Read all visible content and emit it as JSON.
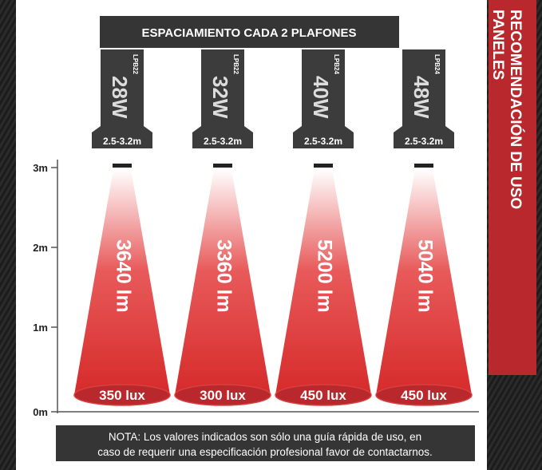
{
  "header": {
    "title": "ESPACIAMIENTO CADA 2 PLAFONES"
  },
  "sidebar": {
    "line1": "RECOMENDACIÓN DE USO",
    "line2": "PANELES"
  },
  "heights": [
    "3m",
    "2m",
    "1m",
    "0m"
  ],
  "lamps": [
    {
      "model": "LPB22",
      "watts": "28W",
      "range": "2.5-3.2m",
      "lumens": "3640 lm",
      "lux": "350 lux"
    },
    {
      "model": "LPB22",
      "watts": "32W",
      "range": "2.5-3.2m",
      "lumens": "3360 lm",
      "lux": "300 lux"
    },
    {
      "model": "LPB24",
      "watts": "40W",
      "range": "2.5-3.2m",
      "lumens": "5200 lm",
      "lux": "450 lux"
    },
    {
      "model": "LPB24",
      "watts": "48W",
      "range": "2.5-3.2m",
      "lumens": "5040 lm",
      "lux": "450 lux"
    }
  ],
  "note": {
    "line1": "NOTA: Los valores indicados son sólo una guía rápida de uso, en",
    "line2": "caso de requerir una especificación profesional favor de contactarnos."
  }
}
